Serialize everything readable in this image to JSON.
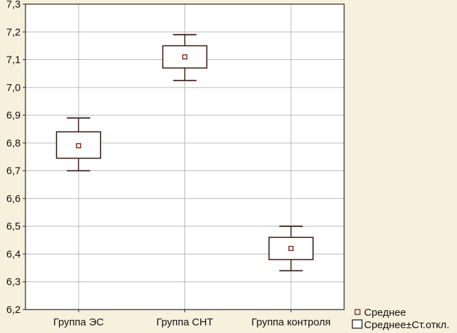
{
  "chart_data": {
    "type": "box",
    "categories": [
      "Группа ЭС",
      "Группа СНТ",
      "Группа контроля"
    ],
    "series": [
      {
        "name": "Среднее",
        "values": [
          6.79,
          7.11,
          6.42
        ]
      }
    ],
    "box_low": [
      6.745,
      7.07,
      6.38
    ],
    "box_high": [
      6.84,
      7.15,
      6.46
    ],
    "whisker_low": [
      6.7,
      7.025,
      6.34
    ],
    "whisker_high": [
      6.89,
      7.19,
      6.5
    ],
    "yticks": [
      "6,2",
      "6,3",
      "6,4",
      "6,5",
      "6,6",
      "6,7",
      "6,8",
      "6,9",
      "7,0",
      "7,1",
      "7,2",
      "7,3"
    ],
    "ytick_values": [
      6.2,
      6.3,
      6.4,
      6.5,
      6.6,
      6.7,
      6.8,
      6.9,
      7.0,
      7.1,
      7.2,
      7.3
    ],
    "ylim": [
      6.2,
      7.3
    ],
    "grid": true,
    "legend": {
      "placement": "bottom-right",
      "entries": [
        "Среднее",
        "Среднее±Ст.откл."
      ]
    },
    "title": "",
    "xlabel": "",
    "ylabel": ""
  },
  "colors": {
    "background": "#f7f0dc",
    "plot_background": "#ffffff",
    "gridline": "#b8b8b8",
    "box_stroke": "#3a1d14",
    "box_fill": "#ffffff",
    "mean_stroke": "#7a1a10",
    "axis": "#222222"
  }
}
